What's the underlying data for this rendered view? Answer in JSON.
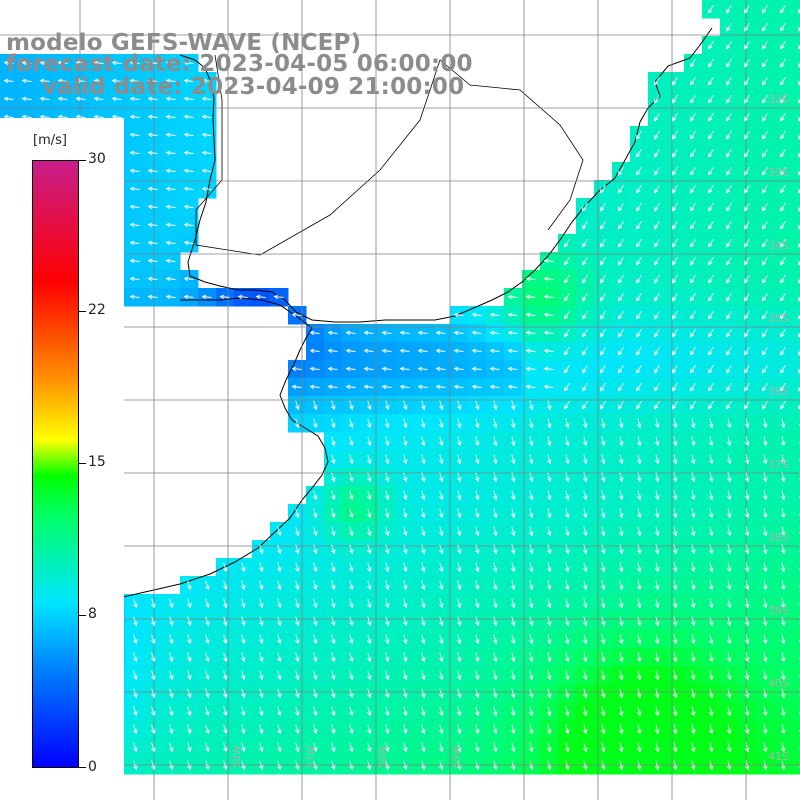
{
  "header": {
    "model": "modelo GEFS-WAVE (NCEP)",
    "forecast": "forecast date: 2023-04-05 06:00:00",
    "valid": "valid date: 2023-04-09 21:00:00"
  },
  "colorbar": {
    "unit": "[m/s]",
    "ticks": [
      "30",
      "22",
      "15",
      "8",
      "0"
    ],
    "colors": [
      "#0000ff",
      "#0080ff",
      "#00e5ff",
      "#00ff60",
      "#00ff00",
      "#ffff00",
      "#ff9000",
      "#ff0000",
      "#c81e8c"
    ]
  },
  "lat_labels": [
    "32S",
    "33S",
    "34S",
    "35S",
    "36S",
    "37S",
    "38S",
    "39S",
    "40S",
    "41S"
  ],
  "lon_labels": [
    "58W",
    "57W",
    "56W",
    "55W"
  ],
  "map": {
    "land_color": "#ffffff",
    "coast_color": "#000000",
    "grid_color": "#808080"
  }
}
